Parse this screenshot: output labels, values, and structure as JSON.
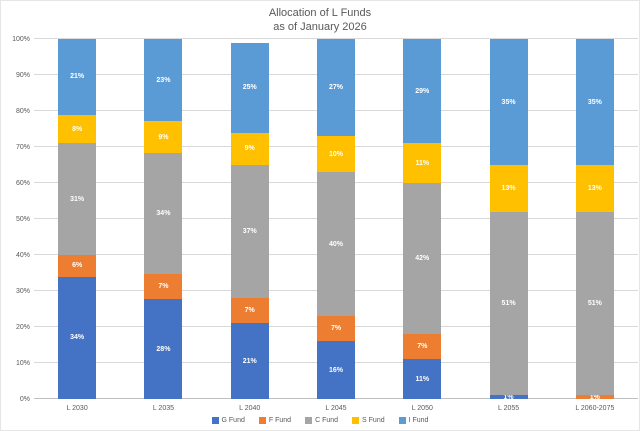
{
  "title": {
    "line1": "Allocation of L Funds",
    "line2": "as of January 2026"
  },
  "chart_data": {
    "type": "bar",
    "stacked": true,
    "title": "Allocation of L Funds as of January 2026",
    "xlabel": "",
    "ylabel": "",
    "ylim": [
      0,
      100
    ],
    "grid": "horizontal",
    "legend_position": "bottom",
    "categories": [
      "L 2030",
      "L 2035",
      "L 2040",
      "L 2045",
      "L 2050",
      "L 2055",
      "L 2060-2075"
    ],
    "y_ticks": [
      "0%",
      "10%",
      "20%",
      "30%",
      "40%",
      "50%",
      "60%",
      "70%",
      "80%",
      "90%",
      "100%"
    ],
    "data_label_suffix": "%",
    "series": [
      {
        "name": "G Fund",
        "color": "#4472C4",
        "values": [
          34,
          28,
          21,
          16,
          11,
          1,
          0
        ]
      },
      {
        "name": "F Fund",
        "color": "#ED7D31",
        "values": [
          6,
          7,
          7,
          7,
          7,
          0,
          1
        ]
      },
      {
        "name": "C Fund",
        "color": "#A5A5A5",
        "values": [
          31,
          34,
          37,
          40,
          42,
          51,
          51
        ]
      },
      {
        "name": "S Fund",
        "color": "#FFC000",
        "values": [
          8,
          9,
          9,
          10,
          11,
          13,
          13
        ]
      },
      {
        "name": "I Fund",
        "color": "#5B9BD5",
        "values": [
          21,
          23,
          25,
          27,
          29,
          35,
          35
        ]
      }
    ]
  },
  "colors": {
    "gridline": "#D9D9D9",
    "axis_line": "#BFBFBF",
    "text": "#595959",
    "data_label": "#FFFFFF",
    "background": "#FFFFFF"
  }
}
